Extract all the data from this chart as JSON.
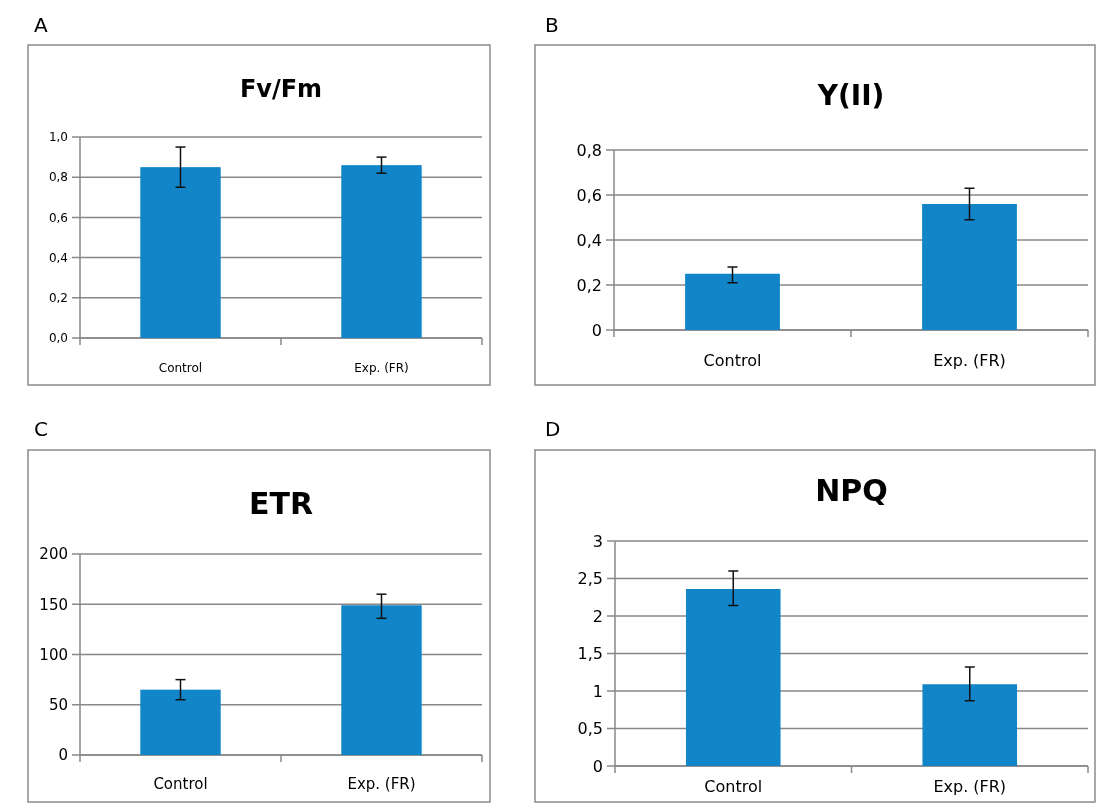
{
  "chart_data": [
    {
      "type": "bar",
      "title": "Fv/Fm",
      "annotations": [
        "A"
      ],
      "categories": [
        "Control",
        "Exp. (FR)"
      ],
      "values": [
        0.85,
        0.86
      ],
      "errors": [
        [
          0.75,
          0.95
        ],
        [
          0.82,
          0.9
        ]
      ],
      "color": "#1185c8",
      "ylim": [
        0,
        1
      ],
      "yticks": [
        {
          "value": 0,
          "label": "0,0"
        },
        {
          "value": 0.2,
          "label": "0,2"
        },
        {
          "value": 0.4,
          "label": "0,4"
        },
        {
          "value": 0.6,
          "label": "0,6"
        },
        {
          "value": 0.8,
          "label": "0,8"
        },
        {
          "value": 1,
          "label": "1,0"
        }
      ],
      "grid": "y"
    },
    {
      "type": "bar",
      "title": "Y(II)",
      "annotations": [
        "B"
      ],
      "categories": [
        "Control",
        "Exp. (FR)"
      ],
      "values": [
        0.25,
        0.56
      ],
      "errors": [
        [
          0.21,
          0.28
        ],
        [
          0.49,
          0.63
        ]
      ],
      "color": "#1185c8",
      "ylim": [
        0,
        0.8
      ],
      "yticks": [
        0,
        {
          "value": 0.2,
          "label": "0,2"
        },
        {
          "value": 0.4,
          "label": "0,4"
        },
        {
          "value": 0.6,
          "label": "0,6"
        },
        {
          "value": 0.8,
          "label": "0,8"
        }
      ],
      "grid": "y"
    },
    {
      "type": "bar",
      "title": "ETR",
      "annotations": [
        "C"
      ],
      "categories": [
        "Control",
        "Exp. (FR)"
      ],
      "values": [
        65,
        149
      ],
      "errors": [
        [
          55,
          75
        ],
        [
          136,
          160
        ]
      ],
      "color": "#1185c8",
      "ylim": [
        0,
        200
      ],
      "yticks": [
        0,
        50,
        100,
        150,
        200
      ],
      "grid": "y"
    },
    {
      "type": "bar",
      "title": "NPQ",
      "annotations": [
        "D"
      ],
      "categories": [
        "Control",
        "Exp. (FR)"
      ],
      "values": [
        2.36,
        1.09
      ],
      "errors": [
        [
          2.14,
          2.6
        ],
        [
          0.87,
          1.32
        ]
      ],
      "color": "#1185c8",
      "ylim": [
        0,
        3
      ],
      "yticks": [
        0,
        {
          "value": 0.5,
          "label": "0,5"
        },
        1,
        {
          "value": 1.5,
          "label": "1,5"
        },
        2,
        {
          "value": 2.5,
          "label": "2,5"
        },
        3
      ],
      "grid": "y"
    }
  ]
}
